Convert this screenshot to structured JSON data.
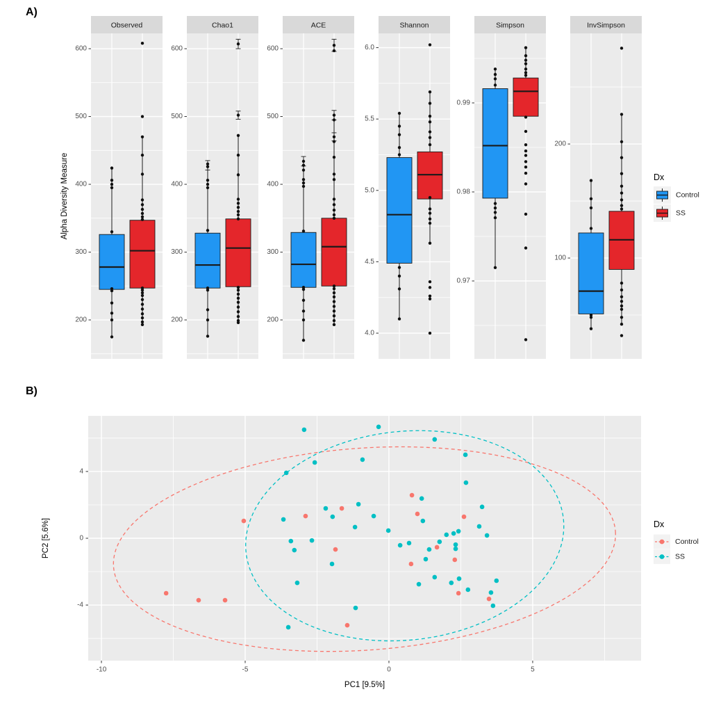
{
  "labels": {
    "panel_a": "A)",
    "panel_b": "B)"
  },
  "colors": {
    "box_blue": "#2196F3",
    "box_red": "#E4262B",
    "point_control": "#F8766D",
    "point_ss": "#00BFC4",
    "panel_bg": "#EBEBEB",
    "strip_bg": "#D9D9D9",
    "grid": "#FFFFFF",
    "tick_text": "#4D4D4D",
    "ink": "#1A1A1A",
    "legend_key_bg": "#F2F2F2",
    "dot": "#101010"
  },
  "chart_data": [
    {
      "type": "boxplot",
      "ylabel": "Alpha Diversity Measure",
      "legend": {
        "title": "Dx",
        "position": "right",
        "entries": [
          {
            "label": "Control",
            "color": "#2196F3"
          },
          {
            "label": "SS",
            "color": "#E4262B"
          }
        ]
      },
      "facets": [
        {
          "name": "Observed",
          "ylim": [
            142.6,
            622.6
          ],
          "tick_values": [
            200,
            300,
            400,
            500,
            600
          ],
          "tick_labels": [
            "200",
            "300",
            "400",
            "500",
            "600"
          ],
          "minor": [
            150,
            250,
            350,
            450,
            550
          ],
          "groups": [
            {
              "name": "Control",
              "whisker_low": 175,
              "q1": 245,
              "median": 278,
              "q3": 326,
              "whisker_high": 424,
              "points": [
                424,
                406,
                400,
                395,
                330,
                246,
                243,
                225,
                210,
                200,
                175
              ]
            },
            {
              "name": "SS",
              "whisker_low": 193,
              "q1": 247,
              "median": 302,
              "q3": 347,
              "whisker_high": 470,
              "points": [
                608,
                500,
                470,
                443,
                415,
                377,
                370,
                363,
                357,
                352,
                348,
                247,
                244,
                240,
                236,
                230,
                223,
                216,
                209,
                203,
                197,
                193
              ]
            }
          ]
        },
        {
          "name": "Chao1",
          "ylim": [
            142.6,
            622.6
          ],
          "tick_values": [
            200,
            300,
            400,
            500,
            600
          ],
          "tick_labels": [
            "200",
            "300",
            "400",
            "500",
            "600"
          ],
          "minor": [
            150,
            250,
            350,
            450,
            550
          ],
          "groups": [
            {
              "name": "Control",
              "whisker_low": 176,
              "q1": 247,
              "median": 281,
              "q3": 328,
              "whisker_high": 428,
              "points": [
                430,
                426,
                406,
                400,
                395,
                332,
                247,
                244,
                215,
                200,
                176
              ],
              "error_bars": [
                {
                  "v": 428,
                  "e": 7
                }
              ]
            },
            {
              "name": "SS",
              "whisker_low": 196,
              "q1": 249,
              "median": 306,
              "q3": 349,
              "whisker_high": 472,
              "points": [
                607,
                502,
                472,
                443,
                414,
                378,
                372,
                366,
                360,
                355,
                349,
                248,
                244,
                238,
                232,
                226,
                219,
                212,
                205,
                199,
                196
              ],
              "error_bars": [
                {
                  "v": 607,
                  "e": 7
                },
                {
                  "v": 502,
                  "e": 6
                }
              ]
            }
          ]
        },
        {
          "name": "ACE",
          "ylim": [
            142.6,
            622.6
          ],
          "tick_values": [
            200,
            300,
            400,
            500,
            600
          ],
          "tick_labels": [
            "200",
            "300",
            "400",
            "500",
            "600"
          ],
          "minor": [
            150,
            250,
            350,
            450,
            550
          ],
          "groups": [
            {
              "name": "Control",
              "whisker_low": 170,
              "q1": 248,
              "median": 282,
              "q3": 329,
              "whisker_high": 434,
              "points": [
                434,
                428,
                421,
                407,
                402,
                397,
                331,
                248,
                245,
                229,
                213,
                200,
                170
              ],
              "error_bars": [
                {
                  "v": 434,
                  "e": 7
                }
              ]
            },
            {
              "name": "SS",
              "whisker_low": 193,
              "q1": 250,
              "median": 308,
              "q3": 350,
              "whisker_high": 500,
              "points": [
                605,
                597,
                502,
                495,
                470,
                463,
                440,
                415,
                407,
                378,
                370,
                362,
                355,
                350,
                250,
                246,
                240,
                234,
                227,
                220,
                213,
                206,
                199,
                193
              ],
              "error_bars": [
                {
                  "v": 605,
                  "e": 9
                },
                {
                  "v": 502,
                  "e": 7
                },
                {
                  "v": 470,
                  "e": 6
                }
              ]
            }
          ]
        },
        {
          "name": "Shannon",
          "ylim": [
            3.82,
            6.1
          ],
          "tick_values": [
            4.0,
            4.5,
            5.0,
            5.5,
            6.0
          ],
          "tick_labels": [
            "4.0",
            "4.5",
            "5.0",
            "5.5",
            "6.0"
          ],
          "minor": [
            4.25,
            4.75,
            5.25,
            5.75
          ],
          "groups": [
            {
              "name": "Control",
              "whisker_low": 4.1,
              "q1": 4.49,
              "median": 4.83,
              "q3": 5.23,
              "whisker_high": 5.54,
              "points": [
                5.54,
                5.45,
                5.39,
                5.3,
                5.25,
                4.46,
                4.4,
                4.31,
                4.1
              ]
            },
            {
              "name": "SS",
              "whisker_low": 4.63,
              "q1": 4.94,
              "median": 5.11,
              "q3": 5.27,
              "whisker_high": 5.69,
              "points": [
                6.02,
                5.69,
                5.61,
                5.52,
                5.48,
                5.41,
                5.37,
                5.32,
                4.95,
                4.87,
                4.84,
                4.8,
                4.77,
                4.63,
                4.36,
                4.32,
                4.26,
                4.24,
                4.0
              ]
            }
          ]
        },
        {
          "name": "Simpson",
          "ylim": [
            0.96125,
            0.99781
          ],
          "tick_values": [
            0.97,
            0.98,
            0.99
          ],
          "tick_labels": [
            "0.97",
            "0.98",
            "0.99"
          ],
          "minor": [
            0.965,
            0.975,
            0.985,
            0.995
          ],
          "groups": [
            {
              "name": "Control",
              "whisker_low": 0.9715,
              "q1": 0.9793,
              "median": 0.9852,
              "q3": 0.9916,
              "whisker_high": 0.9938,
              "points": [
                0.9938,
                0.9932,
                0.9927,
                0.992,
                0.9787,
                0.9782,
                0.9777,
                0.9771,
                0.9715
              ]
            },
            {
              "name": "SS",
              "whisker_low": 0.9884,
              "q1": 0.9885,
              "median": 0.9913,
              "q3": 0.9928,
              "whisker_high": 0.9962,
              "points": [
                0.9962,
                0.9953,
                0.9948,
                0.9944,
                0.9938,
                0.9934,
                0.9931,
                0.9884,
                0.9868,
                0.9853,
                0.9846,
                0.9841,
                0.9834,
                0.9828,
                0.9821,
                0.9809,
                0.9775,
                0.9737,
                0.9634
              ]
            }
          ]
        },
        {
          "name": "InvSimpson",
          "ylim": [
            11.6,
            297
          ],
          "tick_values": [
            100,
            200
          ],
          "tick_labels": [
            "100",
            "200"
          ],
          "minor": [
            50,
            150,
            250
          ],
          "groups": [
            {
              "name": "Control",
              "whisker_low": 38,
              "q1": 51,
              "median": 71,
              "q3": 122,
              "whisker_high": 168,
              "points": [
                168,
                152,
                144,
                126,
                50,
                48,
                38
              ]
            },
            {
              "name": "SS",
              "whisker_low": 42,
              "q1": 90,
              "median": 116,
              "q3": 141,
              "whisker_high": 226,
              "points": [
                284,
                226,
                202,
                188,
                174,
                163,
                157,
                151,
                146,
                143,
                78,
                72,
                66,
                62,
                58,
                55,
                48,
                42,
                32
              ]
            }
          ]
        }
      ]
    },
    {
      "type": "scatter",
      "xlabel": "PC1  [9.5%]",
      "ylabel": "PC2  [5.6%]",
      "xlim": [
        -10.46,
        8.77
      ],
      "ylim": [
        -7.33,
        7.33
      ],
      "x_tick_values": [
        -10,
        -5,
        0,
        5
      ],
      "x_tick_labels": [
        "-10",
        "-5",
        "0",
        "5"
      ],
      "x_minor": [
        -7.5,
        -2.5,
        2.5,
        7.5
      ],
      "y_tick_values": [
        -4,
        0,
        4
      ],
      "y_tick_labels": [
        "-4",
        "0",
        "4"
      ],
      "y_minor": [
        -6,
        -2,
        2,
        6
      ],
      "legend": {
        "title": "Dx",
        "position": "right",
        "entries": [
          {
            "label": "Control",
            "color": "#F8766D"
          },
          {
            "label": "SS",
            "color": "#00BFC4"
          }
        ]
      },
      "series": [
        {
          "name": "Control",
          "color": "#F8766D",
          "ellipse": {
            "cx": -0.85,
            "cy": -0.65,
            "rx": 8.75,
            "ry": 6.05,
            "angle": -4
          },
          "points": [
            [
              -5.05,
              1.04
            ],
            [
              -2.9,
              1.33
            ],
            [
              -1.64,
              1.79
            ],
            [
              0.8,
              2.58
            ],
            [
              0.99,
              1.46
            ],
            [
              2.61,
              1.29
            ],
            [
              -1.86,
              -0.67
            ],
            [
              1.67,
              -0.54
            ],
            [
              0.77,
              -1.54
            ],
            [
              2.29,
              -1.29
            ],
            [
              2.42,
              -3.29
            ],
            [
              3.48,
              -3.63
            ],
            [
              -7.75,
              -3.29
            ],
            [
              -6.62,
              -3.71
            ],
            [
              -5.7,
              -3.71
            ],
            [
              -1.45,
              -5.21
            ]
          ]
        },
        {
          "name": "SS",
          "color": "#00BFC4",
          "ellipse": {
            "cx": 0.55,
            "cy": 0.15,
            "rx": 5.55,
            "ry": 6.25,
            "angle": -6
          },
          "points": [
            [
              -2.95,
              6.5
            ],
            [
              -0.36,
              6.67
            ],
            [
              1.59,
              5.92
            ],
            [
              2.66,
              5.0
            ],
            [
              -0.92,
              4.71
            ],
            [
              -2.58,
              4.54
            ],
            [
              -3.57,
              3.92
            ],
            [
              2.68,
              3.33
            ],
            [
              -1.06,
              2.04
            ],
            [
              1.14,
              2.38
            ],
            [
              3.24,
              1.88
            ],
            [
              -2.2,
              1.79
            ],
            [
              -1.96,
              1.29
            ],
            [
              -3.67,
              1.13
            ],
            [
              -0.53,
              1.33
            ],
            [
              1.18,
              1.04
            ],
            [
              -1.18,
              0.67
            ],
            [
              3.14,
              0.71
            ],
            [
              -0.02,
              0.46
            ],
            [
              2.0,
              0.21
            ],
            [
              2.25,
              0.29
            ],
            [
              2.42,
              0.42
            ],
            [
              3.41,
              0.17
            ],
            [
              -3.41,
              -0.17
            ],
            [
              -2.68,
              -0.13
            ],
            [
              0.39,
              -0.42
            ],
            [
              0.7,
              -0.29
            ],
            [
              1.76,
              -0.21
            ],
            [
              2.32,
              -0.38
            ],
            [
              1.4,
              -0.67
            ],
            [
              2.32,
              -0.63
            ],
            [
              -3.29,
              -0.71
            ],
            [
              -1.98,
              -1.54
            ],
            [
              1.28,
              -1.25
            ],
            [
              1.59,
              -2.33
            ],
            [
              1.04,
              -2.75
            ],
            [
              2.17,
              -2.67
            ],
            [
              2.44,
              -2.42
            ],
            [
              2.75,
              -3.08
            ],
            [
              3.74,
              -2.54
            ],
            [
              3.55,
              -3.25
            ],
            [
              3.62,
              -4.04
            ],
            [
              -3.19,
              -2.67
            ],
            [
              -1.16,
              -4.17
            ],
            [
              -3.5,
              -5.33
            ]
          ]
        }
      ]
    }
  ]
}
